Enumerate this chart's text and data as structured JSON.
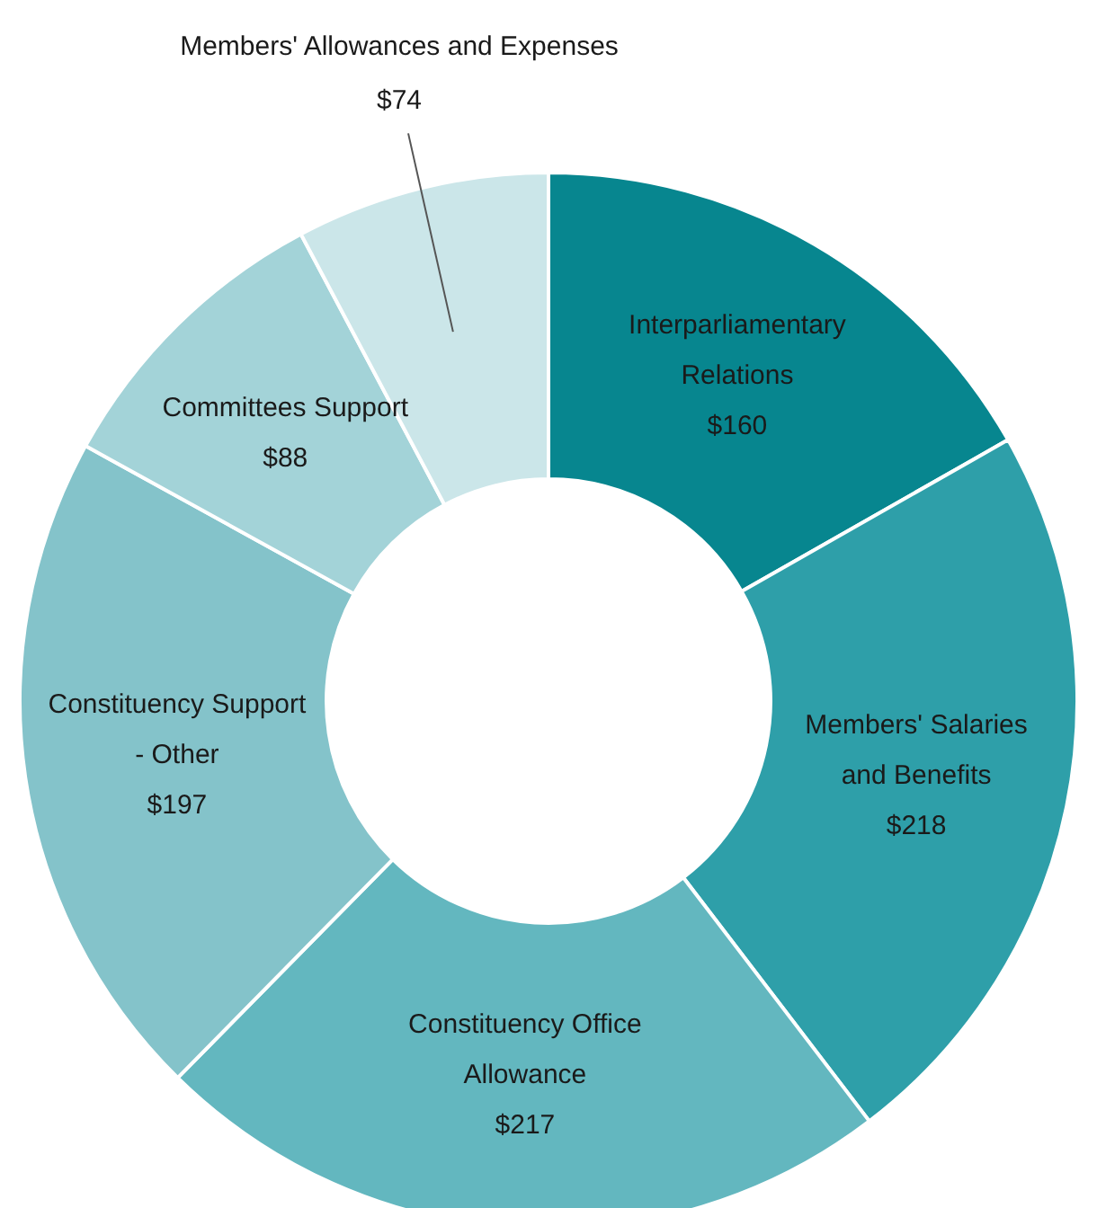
{
  "chart_data": {
    "type": "donut",
    "categories": [
      "Interparliamentary Relations",
      "Members' Salaries and Benefits",
      "Constituency Office Allowance",
      "Constituency Support - Other",
      "Committees Support",
      "Members' Allowances and Expenses"
    ],
    "values": [
      160,
      218,
      217,
      197,
      88,
      74
    ],
    "value_labels": [
      "$160",
      "$218",
      "$217",
      "$197",
      "$88",
      "$74"
    ],
    "colors": [
      "#07868f",
      "#2e9fa9",
      "#63b7bf",
      "#84c3ca",
      "#a3d3d8",
      "#cbe6e9"
    ],
    "legend": false
  }
}
